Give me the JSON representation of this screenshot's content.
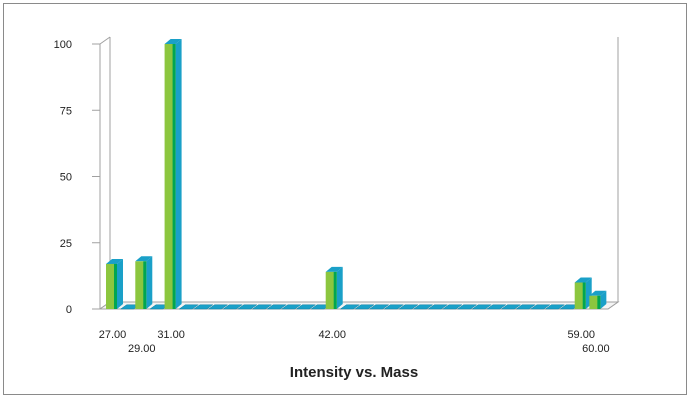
{
  "chart_data": {
    "type": "bar",
    "title": "Intensity vs. Mass",
    "xlabel": "",
    "ylabel": "",
    "ylim": [
      0,
      100
    ],
    "y_ticks": [
      "0",
      "25",
      "50",
      "75",
      "100"
    ],
    "x_tick_labels": [
      "27.00",
      "29.00",
      "31.00",
      "42.00",
      "59.00",
      "60.00"
    ],
    "x": [
      27,
      28,
      29,
      30,
      31,
      32,
      33,
      34,
      35,
      36,
      37,
      38,
      39,
      40,
      41,
      42,
      43,
      44,
      45,
      46,
      47,
      48,
      49,
      50,
      51,
      52,
      53,
      54,
      55,
      56,
      57,
      58,
      59,
      60
    ],
    "values": [
      17,
      0,
      18,
      0,
      100,
      0,
      0,
      0,
      0,
      0,
      0,
      0,
      0,
      0,
      0,
      14,
      0,
      0,
      0,
      0,
      0,
      0,
      0,
      0,
      0,
      0,
      0,
      0,
      0,
      0,
      0,
      0,
      10,
      5
    ],
    "grid": false,
    "legend": "none",
    "colors": {
      "front": "#8cc63f",
      "side": "#1aa0c8",
      "top": "#00a651",
      "zero_bar": "#1aa0c8"
    }
  }
}
